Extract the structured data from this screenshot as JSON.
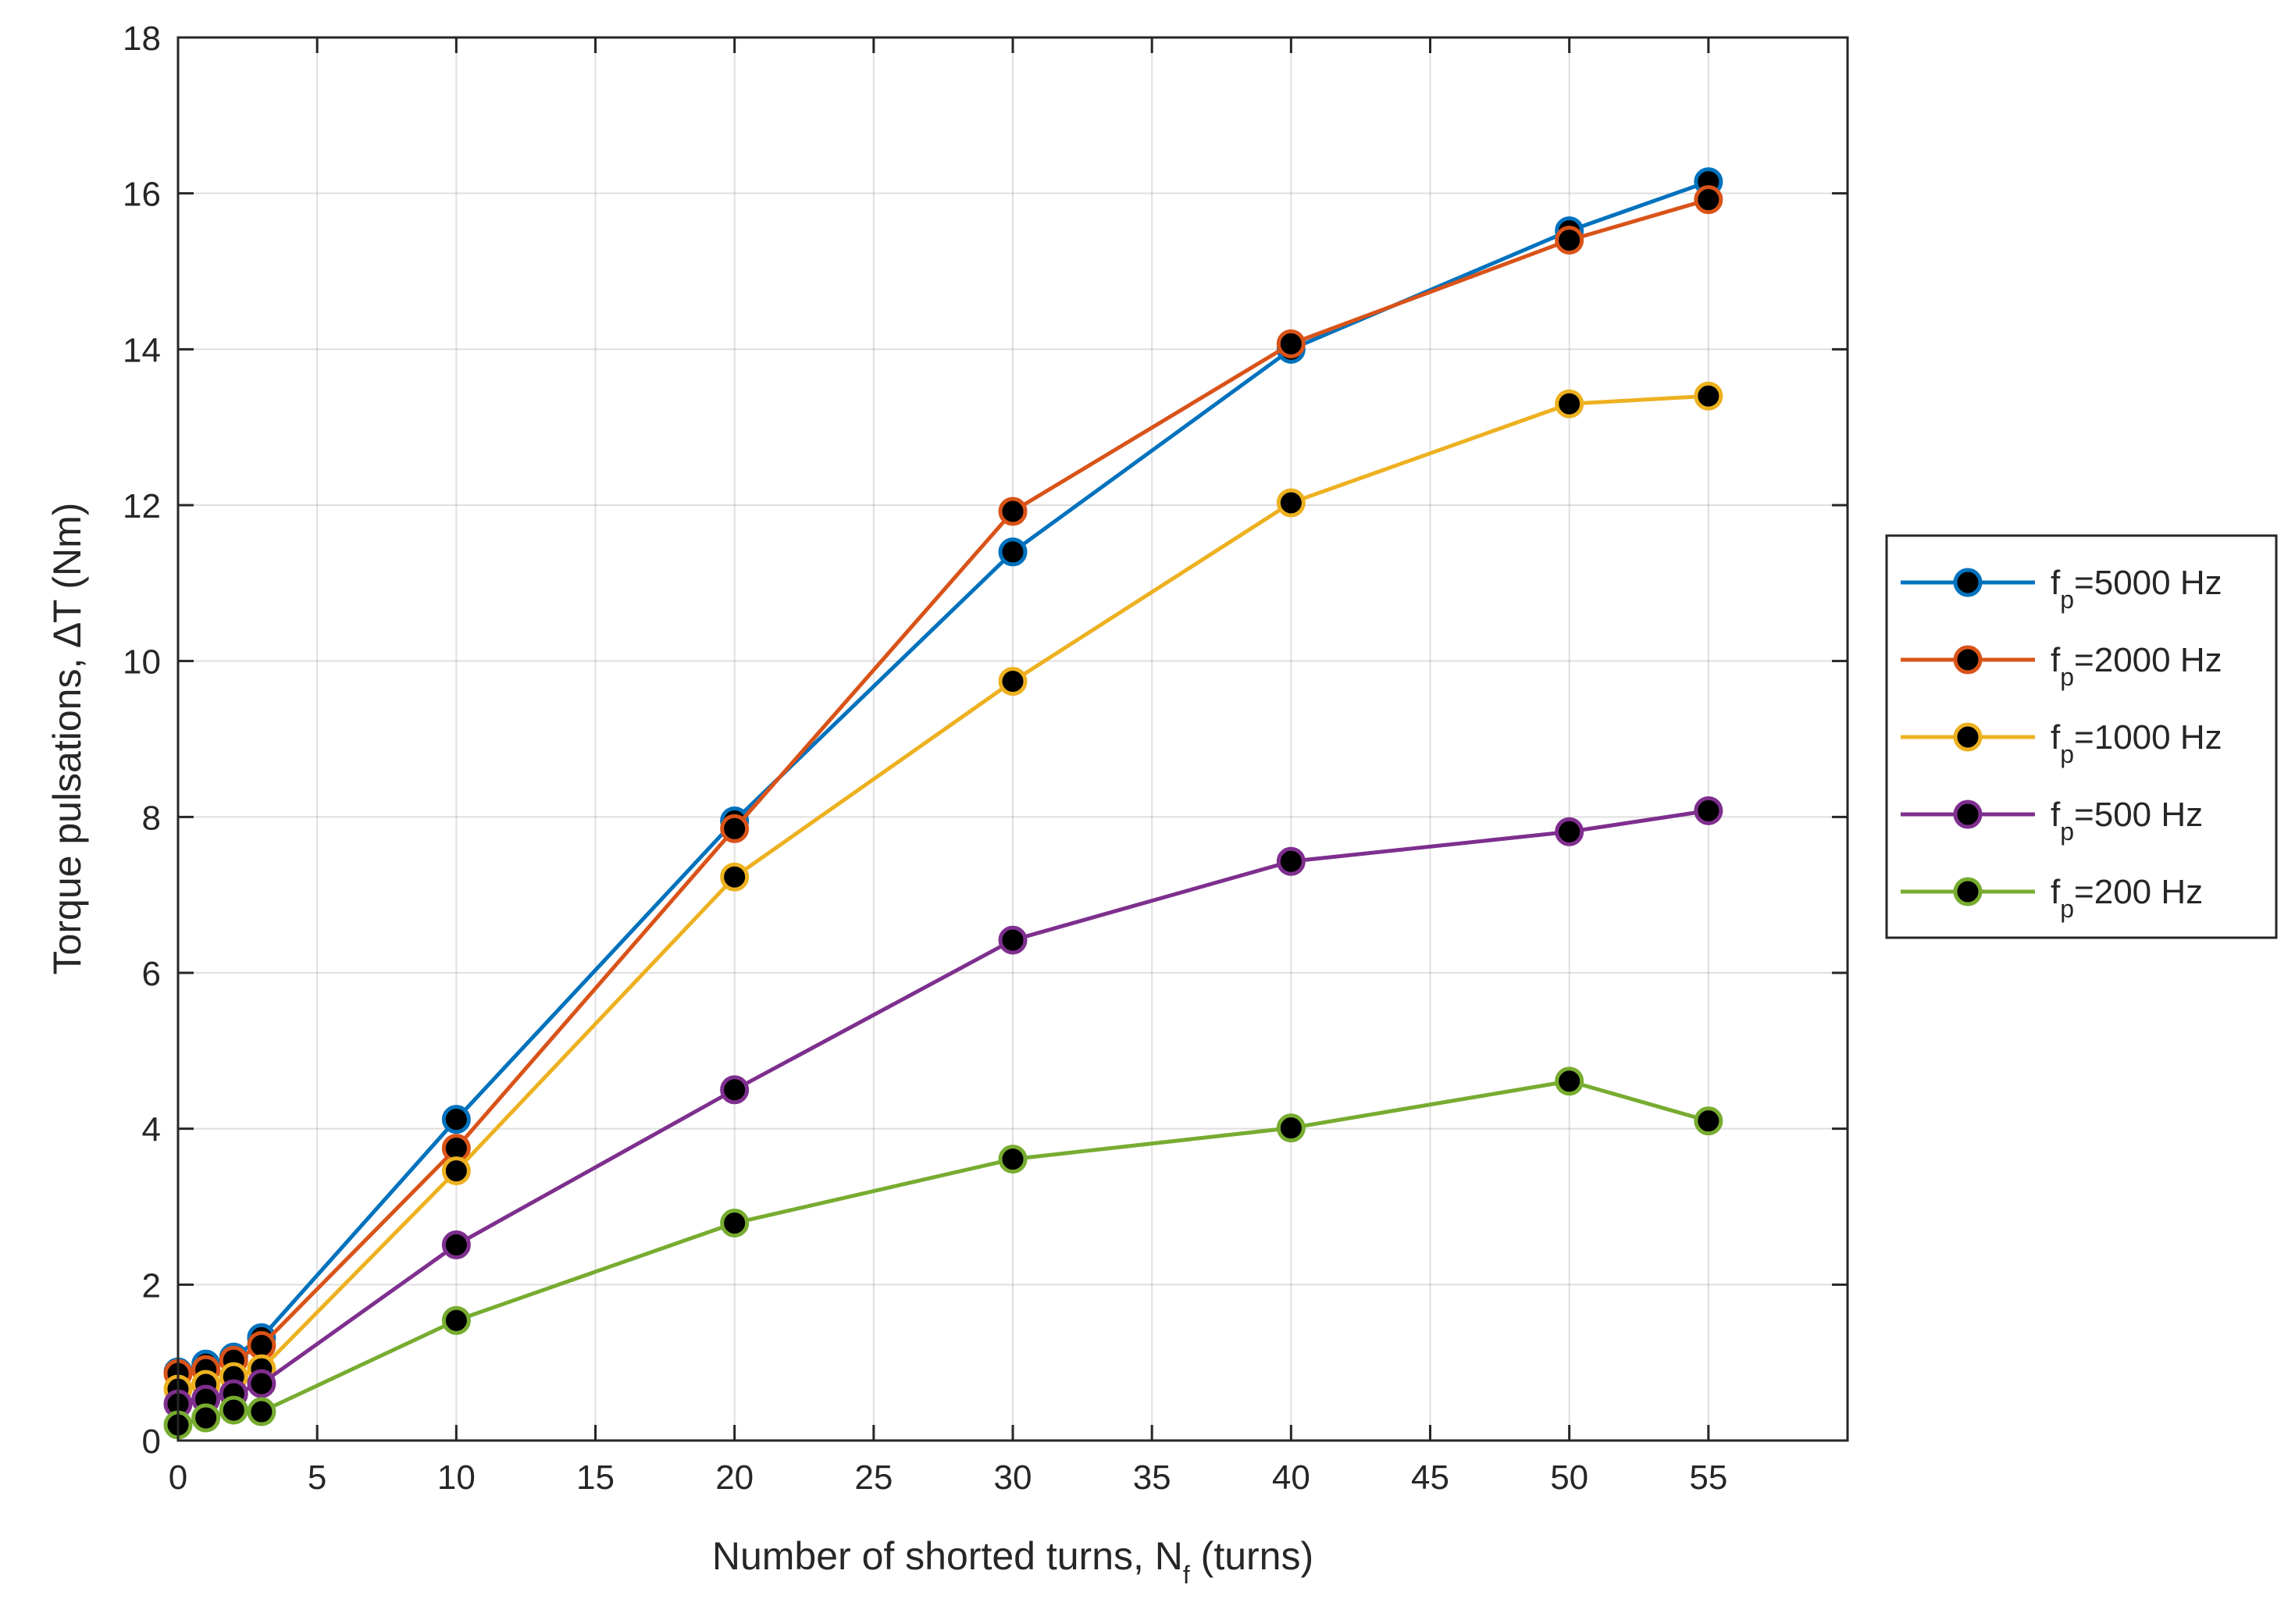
{
  "chart_data": {
    "type": "line",
    "title": "",
    "xlabel": {
      "main": "Number of shorted turns, N",
      "sub": "f",
      "suffix": " (turns)"
    },
    "ylabel": "Torque pulsations,  ∆T (Nm)",
    "xlim": [
      0,
      60
    ],
    "ylim": [
      0,
      18
    ],
    "xticks": [
      0,
      5,
      10,
      15,
      20,
      25,
      30,
      35,
      40,
      45,
      50,
      55
    ],
    "yticks": [
      0,
      2,
      4,
      6,
      8,
      10,
      12,
      14,
      16,
      18
    ],
    "grid": true,
    "legend_position": "outside-right",
    "x": [
      0,
      1,
      2,
      3,
      10,
      20,
      30,
      40,
      50,
      55
    ],
    "series": [
      {
        "name": "f",
        "sub": "p",
        "suffix": "=5000 Hz",
        "color": "#0072BD",
        "values": [
          0.88,
          0.98,
          1.07,
          1.32,
          4.12,
          7.95,
          11.4,
          14.0,
          15.52,
          16.15
        ]
      },
      {
        "name": "f",
        "sub": "p",
        "suffix": "=2000 Hz",
        "color": "#D95319",
        "values": [
          0.86,
          0.91,
          1.03,
          1.22,
          3.75,
          7.85,
          11.92,
          14.07,
          15.4,
          15.92
        ]
      },
      {
        "name": "f",
        "sub": "p",
        "suffix": "=1000 Hz",
        "color": "#EDB120",
        "values": [
          0.66,
          0.72,
          0.82,
          0.92,
          3.46,
          7.23,
          9.74,
          12.03,
          13.3,
          13.4
        ]
      },
      {
        "name": "f",
        "sub": "p",
        "suffix": "=500 Hz",
        "color": "#7E2F8E",
        "values": [
          0.47,
          0.53,
          0.6,
          0.73,
          2.51,
          4.5,
          6.42,
          7.43,
          7.81,
          8.08
        ]
      },
      {
        "name": "f",
        "sub": "p",
        "suffix": "=200 Hz",
        "color": "#77AC30",
        "values": [
          0.2,
          0.29,
          0.39,
          0.37,
          1.54,
          2.79,
          3.61,
          4.01,
          4.61,
          4.1
        ]
      }
    ]
  }
}
